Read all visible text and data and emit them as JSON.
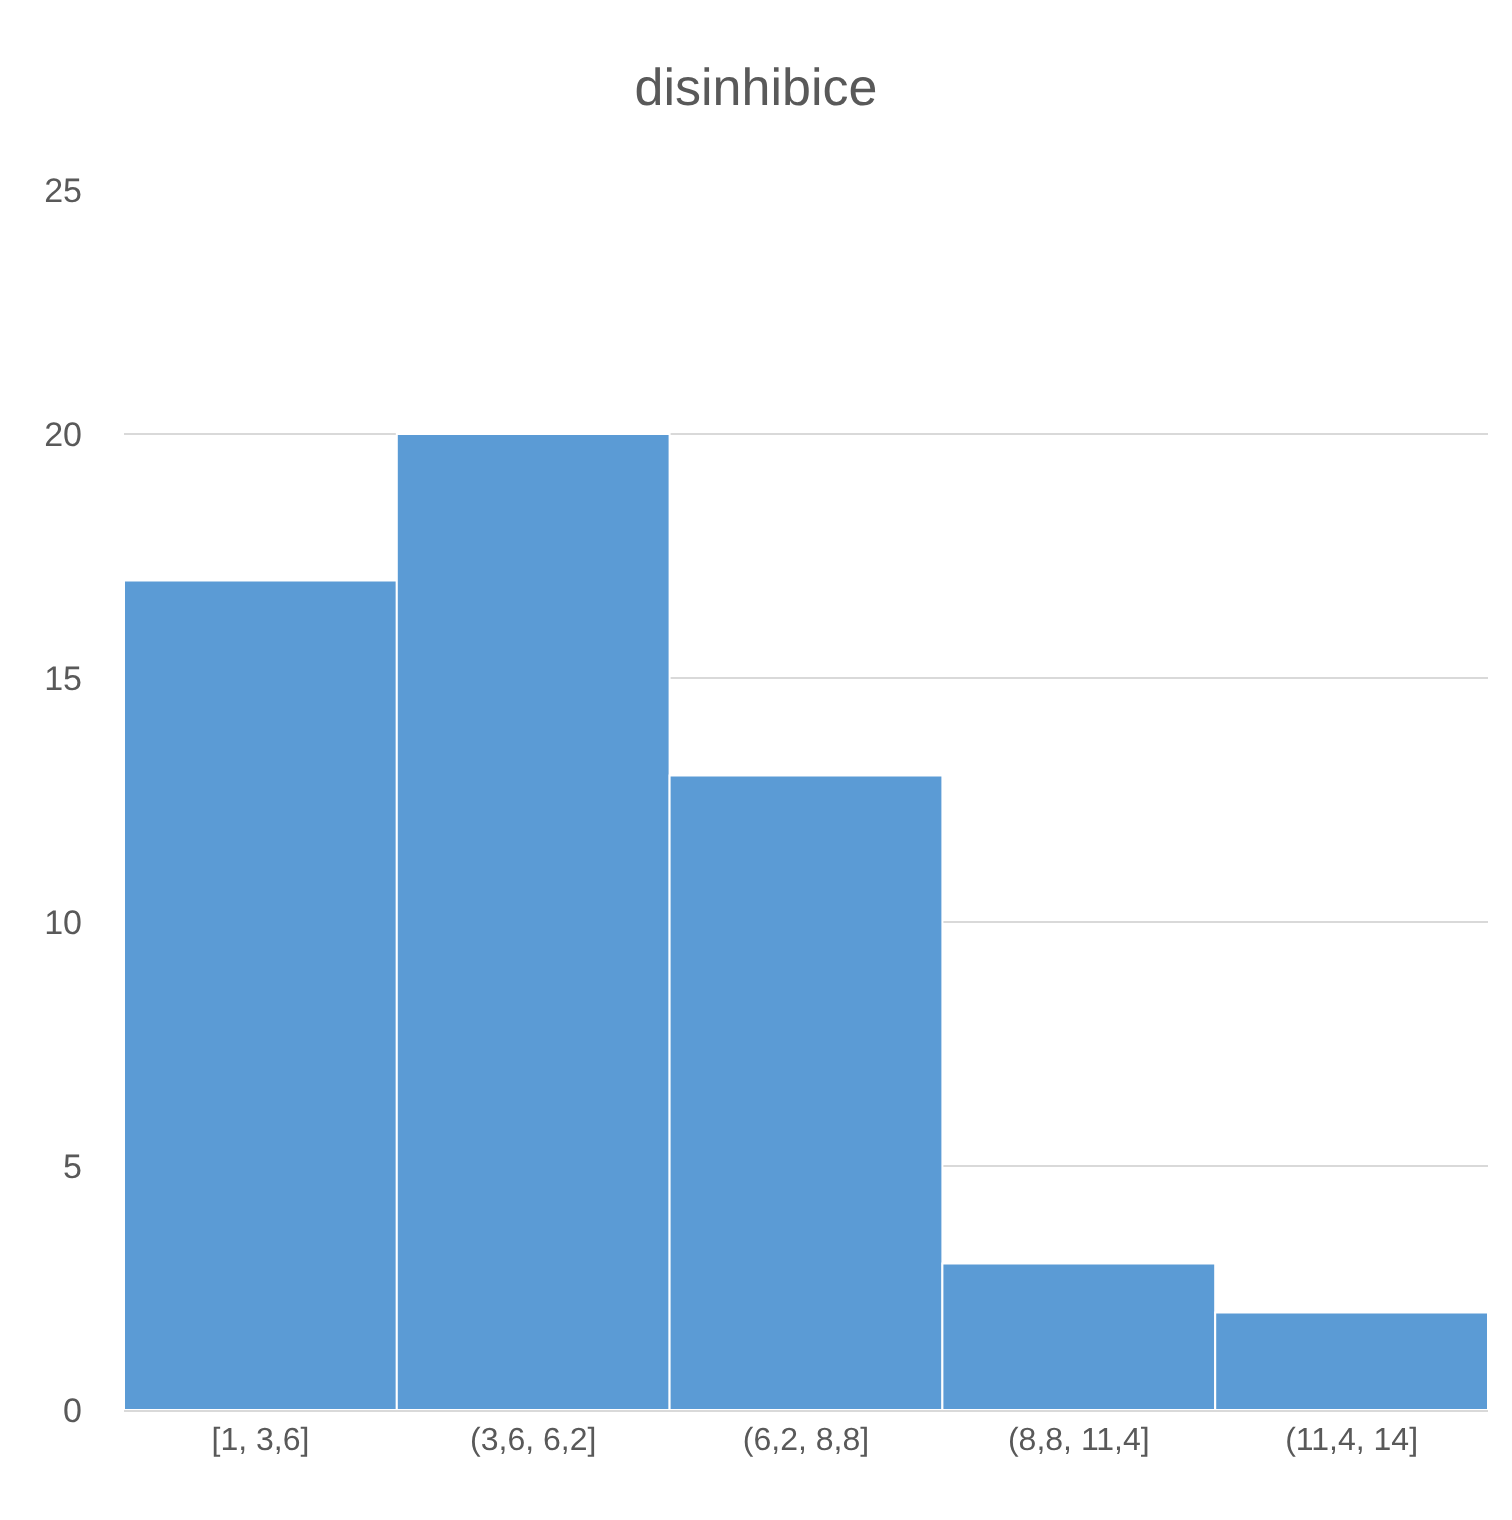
{
  "chart_data": {
    "type": "bar",
    "title": "disinhibice",
    "categories": [
      "[1, 3,6]",
      "(3,6, 6,2]",
      "(6,2, 8,8]",
      "(8,8, 11,4]",
      "(11,4, 14]"
    ],
    "values": [
      17,
      20,
      13,
      3,
      2
    ],
    "color": "#5b9bd5",
    "ylim": [
      0,
      25
    ],
    "yticks": [
      0,
      5,
      10,
      15,
      20,
      25
    ],
    "grid": "y"
  }
}
